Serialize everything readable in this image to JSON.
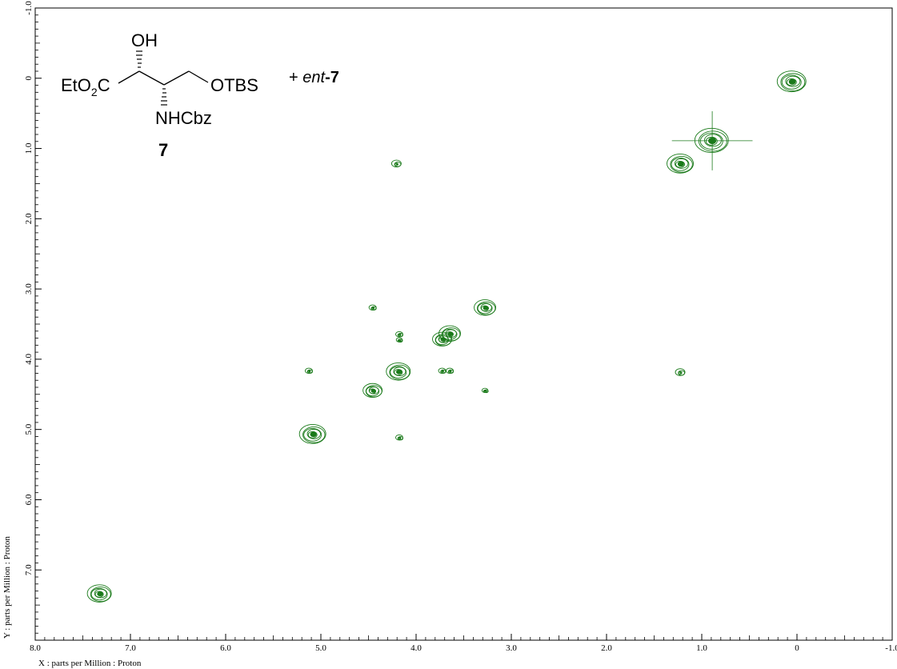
{
  "chart_data": {
    "type": "heatmap",
    "title": "",
    "xlabel": "X : parts per Million : Proton",
    "ylabel": "Y : parts per Million : Proton",
    "xlim": [
      8.0,
      -1.0
    ],
    "ylim": [
      -1.0,
      8.0
    ],
    "x_ticks": [
      8.0,
      7.0,
      6.0,
      5.0,
      4.0,
      3.0,
      2.0,
      1.0,
      0,
      -1.0
    ],
    "x_tick_labels": [
      "8.0",
      "7.0",
      "6.0",
      "5.0",
      "4.0",
      "3.0",
      "2.0",
      "1.0",
      "0",
      "-1.0"
    ],
    "y_ticks": [
      -1.0,
      0,
      1.0,
      2.0,
      3.0,
      4.0,
      5.0,
      6.0,
      7.0
    ],
    "y_tick_labels": [
      "-1.0",
      "0",
      "1.0",
      "2.0",
      "3.0",
      "4.0",
      "5.0",
      "6.0",
      "7.0"
    ],
    "grid": false,
    "color": "#1a7a1a",
    "peaks": [
      {
        "x": 7.32,
        "y": 7.34,
        "size": 1.0
      },
      {
        "x": 5.08,
        "y": 5.07,
        "size": 1.1
      },
      {
        "x": 5.12,
        "y": 4.17,
        "size": 0.3
      },
      {
        "x": 4.45,
        "y": 4.45,
        "size": 0.8
      },
      {
        "x": 4.45,
        "y": 3.27,
        "size": 0.3
      },
      {
        "x": 4.18,
        "y": 4.18,
        "size": 1.0
      },
      {
        "x": 4.17,
        "y": 5.12,
        "size": 0.3
      },
      {
        "x": 4.17,
        "y": 3.65,
        "size": 0.3
      },
      {
        "x": 4.17,
        "y": 3.73,
        "size": 0.25
      },
      {
        "x": 4.2,
        "y": 1.22,
        "size": 0.4
      },
      {
        "x": 3.72,
        "y": 3.72,
        "size": 0.8
      },
      {
        "x": 3.64,
        "y": 3.64,
        "size": 0.9
      },
      {
        "x": 3.72,
        "y": 4.17,
        "size": 0.3
      },
      {
        "x": 3.64,
        "y": 4.17,
        "size": 0.3
      },
      {
        "x": 3.27,
        "y": 3.27,
        "size": 0.9
      },
      {
        "x": 3.27,
        "y": 4.45,
        "size": 0.25
      },
      {
        "x": 1.22,
        "y": 1.22,
        "size": 1.1
      },
      {
        "x": 1.22,
        "y": 4.19,
        "size": 0.4
      },
      {
        "x": 0.89,
        "y": 0.89,
        "size": 1.4
      },
      {
        "x": 0.05,
        "y": 0.05,
        "size": 1.2
      }
    ]
  },
  "structure": {
    "oh": "OH",
    "ester_prefix": "EtO",
    "ester_sub": "2",
    "ester_suffix": "C",
    "otbs": "OTBS",
    "nhcbz": "NHCbz",
    "compound_number": "7",
    "ent_prefix": "+ ",
    "ent_italic": "ent",
    "ent_suffix": "-7"
  }
}
